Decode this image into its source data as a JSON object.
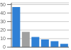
{
  "chart_data": {
    "type": "bar",
    "categories": [
      null,
      null,
      null,
      null,
      null,
      null
    ],
    "values": [
      47,
      18,
      12,
      9,
      7,
      4
    ],
    "colors": [
      "#2f80d5",
      "#a0a0a0",
      "#2f80d5",
      "#2f80d5",
      "#2f80d5",
      "#2f80d5"
    ],
    "ylim": [
      0,
      52
    ],
    "yticks": [
      0,
      10,
      20,
      30,
      40,
      50
    ],
    "grid": true,
    "tick_labels": "y"
  }
}
